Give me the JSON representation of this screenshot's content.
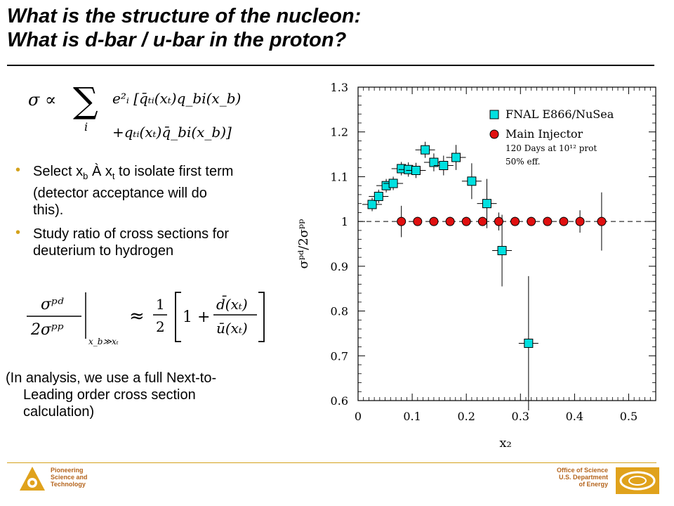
{
  "slide": {
    "title_line1": "What is the structure of the nucleon:",
    "title_line2": "What is d-bar / u-bar in the proton?",
    "bullets": [
      {
        "pre": "Select x",
        "sub1": "b",
        "mid": " À x",
        "sub2": "t",
        "post": " to isolate first term",
        "line2": "(detector acceptance will do",
        "line3": "this)."
      },
      {
        "text": "Study ratio of cross sections for",
        "line2": "deuterium to hydrogen"
      }
    ],
    "note_line1": "(In analysis, we use a full Next-to-",
    "note_line2": "Leading order cross section",
    "note_line3": "calculation)"
  },
  "formulas": {
    "sigma": "σ ∝",
    "sum": "∑",
    "sum_index": "i",
    "term1": "e²ᵢ [q̄ₜᵢ(xₜ)q_bi(x_b)",
    "term2": "+qₜᵢ(xₜ)q̄_bi(x_b)]",
    "ratio_num": "σᵖᵈ",
    "ratio_den": "2σᵖᵖ",
    "ratio_cond": "x_b≫xₜ",
    "approx": "≈",
    "half_num": "1",
    "half_den": "2",
    "bracket_one": "1 +",
    "frac_num": "d̄(xₜ)",
    "frac_den": "ū(xₜ)"
  },
  "footer": {
    "left_line1": "Pioneering",
    "left_line2": "Science and",
    "left_line3": "Technology",
    "right_line1": "Office of Science",
    "right_line2": "U.S. Department",
    "right_line3": "of Energy"
  },
  "chart_data": {
    "type": "scatter",
    "xlabel": "x₂",
    "ylabel": "σᵖᵈ/2σᵖᵖ",
    "xlim": [
      0,
      0.55
    ],
    "ylim": [
      0.6,
      1.3
    ],
    "xticks": [
      "0",
      "0.1",
      "0.2",
      "0.3",
      "0.4",
      "0.5"
    ],
    "yticks": [
      "0.6",
      "0.7",
      "0.8",
      "0.9",
      "1",
      "1.1",
      "1.2",
      "1.3"
    ],
    "reference_line": 1.0,
    "legend_position": "top-right",
    "legend_note": [
      "120 Days at 10¹² prot",
      "50% eff."
    ],
    "series": [
      {
        "name": "FNAL E866/NuSea",
        "color": "#00e0e0",
        "marker": "square",
        "points": [
          {
            "x": 0.026,
            "y": 1.038,
            "yerr": 0.015
          },
          {
            "x": 0.038,
            "y": 1.056,
            "yerr": 0.015
          },
          {
            "x": 0.052,
            "y": 1.08,
            "yerr": 0.015
          },
          {
            "x": 0.065,
            "y": 1.085,
            "yerr": 0.015
          },
          {
            "x": 0.08,
            "y": 1.118,
            "yerr": 0.015
          },
          {
            "x": 0.093,
            "y": 1.116,
            "yerr": 0.016
          },
          {
            "x": 0.107,
            "y": 1.114,
            "yerr": 0.017
          },
          {
            "x": 0.124,
            "y": 1.16,
            "yerr": 0.018
          },
          {
            "x": 0.14,
            "y": 1.132,
            "yerr": 0.02
          },
          {
            "x": 0.158,
            "y": 1.125,
            "yerr": 0.022
          },
          {
            "x": 0.181,
            "y": 1.143,
            "yerr": 0.028
          },
          {
            "x": 0.21,
            "y": 1.09,
            "yerr": 0.04
          },
          {
            "x": 0.238,
            "y": 1.04,
            "yerr": 0.055
          },
          {
            "x": 0.266,
            "y": 0.935,
            "yerr": 0.08
          },
          {
            "x": 0.315,
            "y": 0.728,
            "yerr": 0.15
          }
        ]
      },
      {
        "name": "Main Injector",
        "color": "#e01010",
        "marker": "circle",
        "points": [
          {
            "x": 0.08,
            "y": 1.0,
            "yerr": 0.035
          },
          {
            "x": 0.11,
            "y": 1.0,
            "yerr": 0.01
          },
          {
            "x": 0.14,
            "y": 1.0,
            "yerr": 0.01
          },
          {
            "x": 0.17,
            "y": 1.0,
            "yerr": 0.01
          },
          {
            "x": 0.2,
            "y": 1.0,
            "yerr": 0.01
          },
          {
            "x": 0.23,
            "y": 1.0,
            "yerr": 0.01
          },
          {
            "x": 0.26,
            "y": 1.0,
            "yerr": 0.02
          },
          {
            "x": 0.29,
            "y": 1.0,
            "yerr": 0.01
          },
          {
            "x": 0.32,
            "y": 1.0,
            "yerr": 0.01
          },
          {
            "x": 0.35,
            "y": 1.0,
            "yerr": 0.01
          },
          {
            "x": 0.38,
            "y": 1.0,
            "yerr": 0.01
          },
          {
            "x": 0.41,
            "y": 1.0,
            "yerr": 0.025
          },
          {
            "x": 0.45,
            "y": 1.0,
            "yerr": 0.065
          }
        ]
      }
    ]
  }
}
